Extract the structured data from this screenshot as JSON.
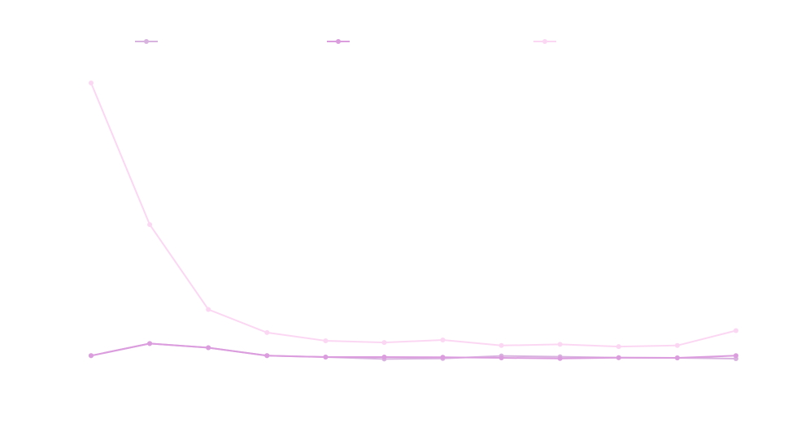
{
  "chart_data": {
    "type": "line",
    "title": "",
    "xlabel": "",
    "ylabel": "",
    "x": [
      1,
      2,
      3,
      4,
      5,
      6,
      7,
      8,
      9,
      10,
      11,
      12
    ],
    "ylim": [
      0,
      100
    ],
    "grid": false,
    "legend_position": "top",
    "series": [
      {
        "color": "#d9b3e0",
        "values": [
          0.8,
          5.2,
          3.7,
          0.8,
          0.3,
          -0.4,
          -0.2,
          0.7,
          0.4,
          0.1,
          0.0,
          -0.3
        ]
      },
      {
        "color": "#dc9ddf",
        "values": [
          0.8,
          5.2,
          3.7,
          0.8,
          0.3,
          0.3,
          0.2,
          0.0,
          -0.2,
          0.1,
          0.0,
          0.8
        ]
      },
      {
        "color": "#fcd7f3",
        "values": [
          100,
          48.5,
          17.6,
          9.2,
          6.2,
          5.6,
          6.5,
          4.5,
          4.9,
          4.1,
          4.5,
          9.9
        ]
      }
    ]
  }
}
